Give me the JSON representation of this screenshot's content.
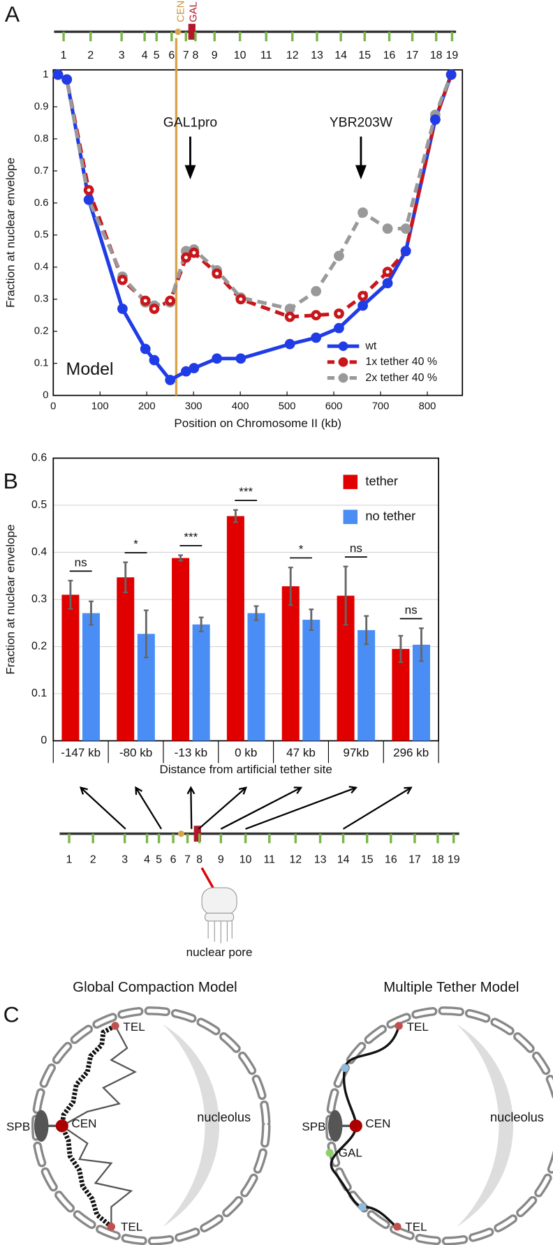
{
  "panel_labels": [
    "A",
    "B",
    "C"
  ],
  "chromosome_labels": [
    "1",
    "2",
    "3",
    "4",
    "5",
    "6",
    "7",
    "8",
    "9",
    "10",
    "11",
    "12",
    "13",
    "14",
    "15",
    "16",
    "17",
    "18",
    "19"
  ],
  "cen_label": "CEN",
  "gal_label": "GAL",
  "pore_label": "nuclear  pore",
  "panel_c": {
    "left": {
      "title": "Global Compaction Model",
      "tel_top": "TEL",
      "spb": "SPB",
      "cen": "CEN",
      "nucleolus": "nucleolus",
      "tel_bottom": "TEL"
    },
    "right": {
      "title": "Multiple Tether Model",
      "tel_top": "TEL",
      "spb": "SPB",
      "cen": "CEN",
      "gal": "GAL",
      "nucleolus": "nucleolus",
      "tel_bottom": "TEL"
    }
  },
  "chart_data": [
    {
      "type": "line",
      "xlabel": "Position on Chromosome II (kb)",
      "ylabel": "Fraction at nuclear envelope",
      "annotation": "Model",
      "annotations": [
        {
          "text": "GAL1pro",
          "x": 293
        },
        {
          "text": "YBR203W",
          "x": 658
        }
      ],
      "vline": {
        "x": 263,
        "color": "#d9a44a"
      },
      "x": [
        10,
        29,
        76,
        148,
        197,
        216,
        250,
        284,
        301,
        350,
        401,
        506,
        562,
        611,
        662,
        715,
        754,
        817,
        851
      ],
      "series": [
        {
          "name": "wt",
          "color": "#1f3ce6",
          "line_style": "solid",
          "values": [
            1.0,
            0.985,
            0.61,
            0.27,
            0.145,
            0.11,
            0.048,
            0.075,
            0.085,
            0.115,
            0.115,
            0.16,
            0.18,
            0.21,
            0.28,
            0.35,
            0.45,
            0.86,
            1.0
          ]
        },
        {
          "name": "1x tether 40 %",
          "color": "#c8161b",
          "line_style": "dashed",
          "values": [
            1.0,
            0.985,
            0.64,
            0.36,
            0.295,
            0.27,
            0.295,
            0.43,
            0.445,
            0.38,
            0.3,
            0.245,
            0.25,
            0.255,
            0.31,
            0.385,
            0.45,
            0.86,
            1.0
          ]
        },
        {
          "name": "2x tether 40 %",
          "color": "#999999",
          "line_style": "dashed",
          "values": [
            1.0,
            0.985,
            0.61,
            0.37,
            0.29,
            0.28,
            0.29,
            0.45,
            0.455,
            0.39,
            0.305,
            0.27,
            0.325,
            0.435,
            0.57,
            0.52,
            0.52,
            0.875,
            1.0
          ]
        }
      ],
      "xlim": [
        0,
        875
      ],
      "xticks": [
        0,
        100,
        200,
        300,
        400,
        500,
        600,
        700,
        800
      ],
      "ylim": [
        0,
        1.015
      ],
      "yticks": [
        0,
        0.1,
        0.2,
        0.3,
        0.4,
        0.5,
        0.6,
        0.7,
        0.8,
        0.9,
        1
      ],
      "legend": "lower right"
    },
    {
      "type": "bar",
      "xlabel": "Distance from artificial tether site",
      "ylabel": "Fraction at nuclear envelope",
      "categories": [
        "-147 kb",
        "-80 kb",
        "-13 kb",
        "0 kb",
        "47 kb",
        "97kb",
        "296 kb"
      ],
      "series": [
        {
          "name": "tether",
          "color": "#e00000",
          "values": [
            0.31,
            0.347,
            0.388,
            0.477,
            0.328,
            0.308,
            0.195
          ],
          "errors": [
            0.03,
            0.032,
            0.006,
            0.013,
            0.04,
            0.062,
            0.028
          ]
        },
        {
          "name": "no tether",
          "color": "#4a8ef5",
          "values": [
            0.271,
            0.227,
            0.247,
            0.271,
            0.257,
            0.235,
            0.204
          ],
          "errors": [
            0.025,
            0.05,
            0.015,
            0.015,
            0.022,
            0.03,
            0.035
          ]
        }
      ],
      "significance": [
        "ns",
        "*",
        "***",
        "***",
        "*",
        "ns",
        "ns"
      ],
      "ylim": [
        0,
        0.6
      ],
      "yticks": [
        0,
        0.1,
        0.2,
        0.3,
        0.4,
        0.5,
        0.6
      ],
      "grid": true,
      "legend": "upper right"
    }
  ]
}
